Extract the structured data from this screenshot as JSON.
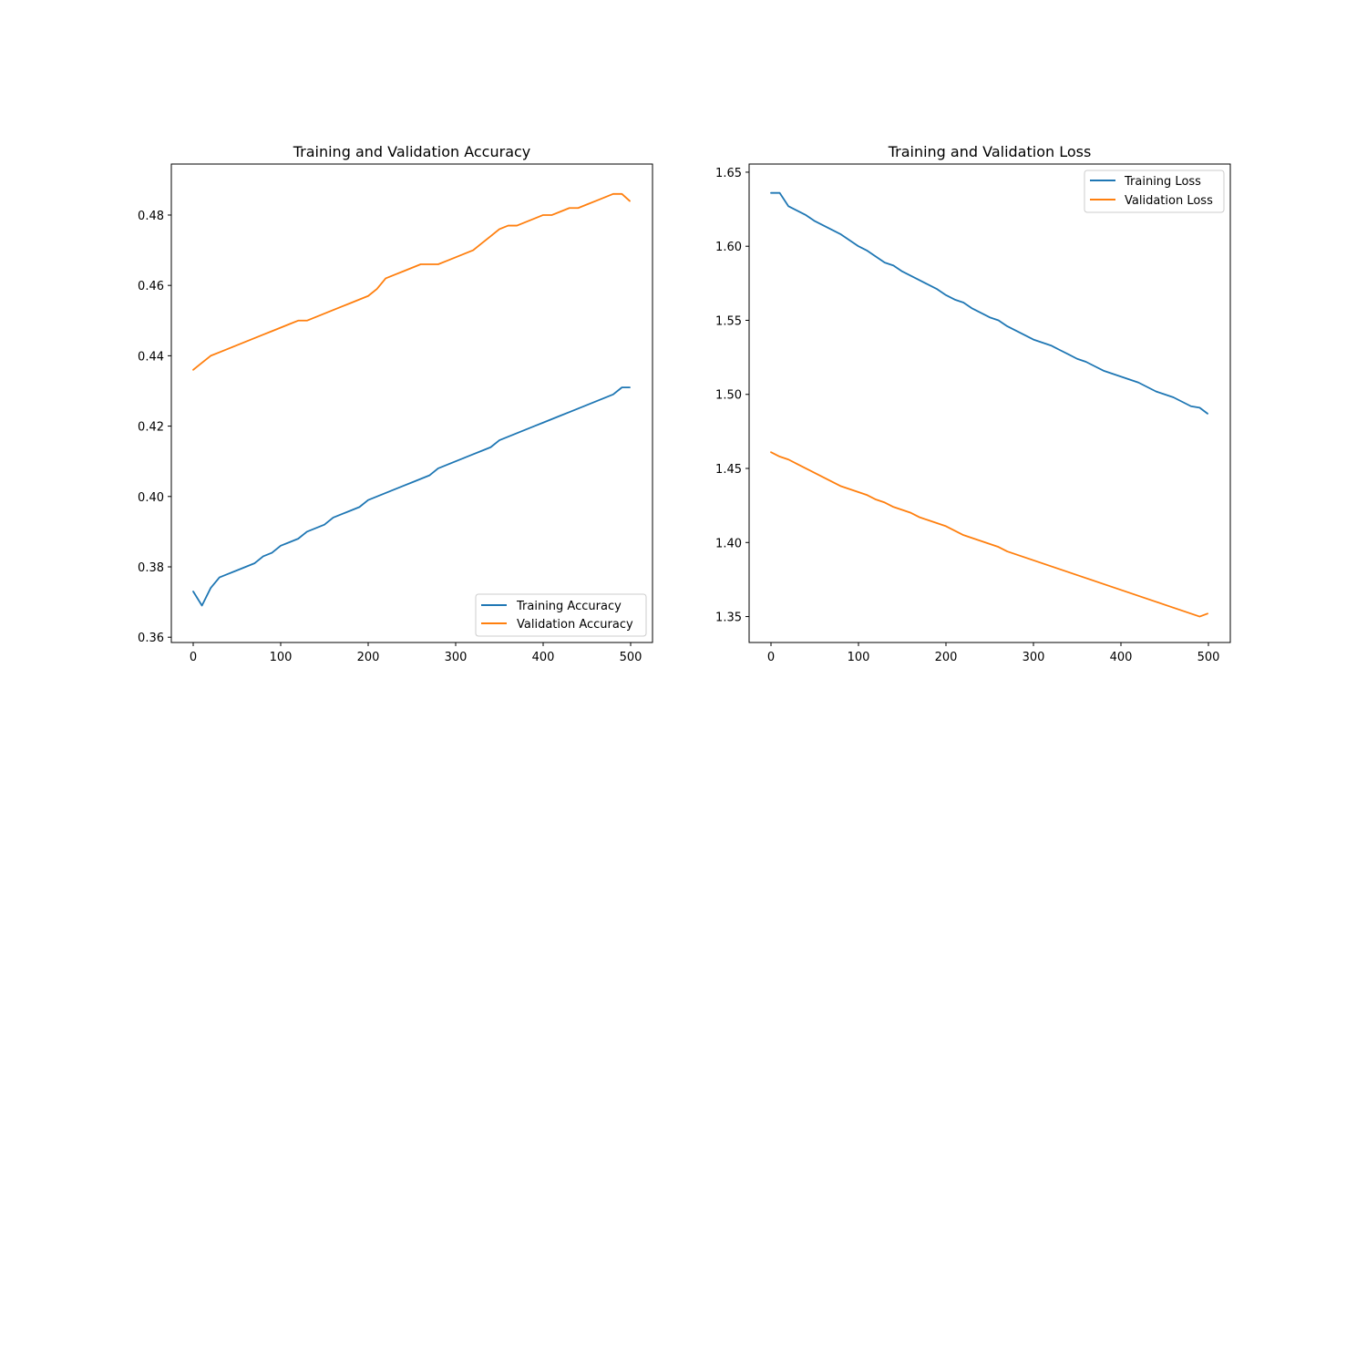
{
  "chart_data": [
    {
      "type": "line",
      "title": "Training and Validation Accuracy",
      "xlabel": "",
      "ylabel": "",
      "xlim": [
        -25,
        525
      ],
      "ylim": [
        0.3585,
        0.4945
      ],
      "xticks": [
        0,
        100,
        200,
        300,
        400,
        500
      ],
      "xtick_labels": [
        "0",
        "100",
        "200",
        "300",
        "400",
        "500"
      ],
      "yticks": [
        0.36,
        0.38,
        0.4,
        0.42,
        0.44,
        0.46,
        0.48
      ],
      "ytick_labels": [
        "0.36",
        "0.38",
        "0.40",
        "0.42",
        "0.44",
        "0.46",
        "0.48"
      ],
      "grid": false,
      "legend_position": "lower-right",
      "series": [
        {
          "name": "Training Accuracy",
          "color": "#1f77b4",
          "x": [
            0,
            10,
            20,
            30,
            40,
            50,
            60,
            70,
            80,
            90,
            100,
            110,
            120,
            130,
            140,
            150,
            160,
            170,
            180,
            190,
            200,
            210,
            220,
            230,
            240,
            250,
            260,
            270,
            280,
            290,
            300,
            310,
            320,
            330,
            340,
            350,
            360,
            370,
            380,
            390,
            400,
            410,
            420,
            430,
            440,
            450,
            460,
            470,
            480,
            490,
            499
          ],
          "y": [
            0.373,
            0.369,
            0.374,
            0.377,
            0.378,
            0.379,
            0.38,
            0.381,
            0.383,
            0.384,
            0.386,
            0.387,
            0.388,
            0.39,
            0.391,
            0.392,
            0.394,
            0.395,
            0.396,
            0.397,
            0.399,
            0.4,
            0.401,
            0.402,
            0.403,
            0.404,
            0.405,
            0.406,
            0.408,
            0.409,
            0.41,
            0.411,
            0.412,
            0.413,
            0.414,
            0.416,
            0.417,
            0.418,
            0.419,
            0.42,
            0.421,
            0.422,
            0.423,
            0.424,
            0.425,
            0.426,
            0.427,
            0.428,
            0.429,
            0.431,
            0.431
          ]
        },
        {
          "name": "Validation Accuracy",
          "color": "#ff7f0e",
          "x": [
            0,
            10,
            20,
            30,
            40,
            50,
            60,
            70,
            80,
            90,
            100,
            110,
            120,
            130,
            140,
            150,
            160,
            170,
            180,
            190,
            200,
            210,
            220,
            230,
            240,
            250,
            260,
            270,
            280,
            290,
            300,
            310,
            320,
            330,
            340,
            350,
            360,
            370,
            380,
            390,
            400,
            410,
            420,
            430,
            440,
            450,
            460,
            470,
            480,
            490,
            499
          ],
          "y": [
            0.436,
            0.438,
            0.44,
            0.441,
            0.442,
            0.443,
            0.444,
            0.445,
            0.446,
            0.447,
            0.448,
            0.449,
            0.45,
            0.45,
            0.451,
            0.452,
            0.453,
            0.454,
            0.455,
            0.456,
            0.457,
            0.459,
            0.462,
            0.463,
            0.464,
            0.465,
            0.466,
            0.466,
            0.466,
            0.467,
            0.468,
            0.469,
            0.47,
            0.472,
            0.474,
            0.476,
            0.477,
            0.477,
            0.478,
            0.479,
            0.48,
            0.48,
            0.481,
            0.482,
            0.482,
            0.483,
            0.484,
            0.485,
            0.486,
            0.486,
            0.484
          ]
        }
      ]
    },
    {
      "type": "line",
      "title": "Training and Validation Loss",
      "xlabel": "",
      "ylabel": "",
      "xlim": [
        -25,
        525
      ],
      "ylim": [
        1.3325,
        1.6555
      ],
      "xticks": [
        0,
        100,
        200,
        300,
        400,
        500
      ],
      "xtick_labels": [
        "0",
        "100",
        "200",
        "300",
        "400",
        "500"
      ],
      "yticks": [
        1.35,
        1.4,
        1.45,
        1.5,
        1.55,
        1.6,
        1.65
      ],
      "ytick_labels": [
        "1.35",
        "1.40",
        "1.45",
        "1.50",
        "1.55",
        "1.60",
        "1.65"
      ],
      "grid": false,
      "legend_position": "upper-right",
      "series": [
        {
          "name": "Training Loss",
          "color": "#1f77b4",
          "x": [
            0,
            10,
            20,
            30,
            40,
            50,
            60,
            70,
            80,
            90,
            100,
            110,
            120,
            130,
            140,
            150,
            160,
            170,
            180,
            190,
            200,
            210,
            220,
            230,
            240,
            250,
            260,
            270,
            280,
            290,
            300,
            310,
            320,
            330,
            340,
            350,
            360,
            370,
            380,
            390,
            400,
            410,
            420,
            430,
            440,
            450,
            460,
            470,
            480,
            490,
            499
          ],
          "y": [
            1.636,
            1.636,
            1.627,
            1.624,
            1.621,
            1.617,
            1.614,
            1.611,
            1.608,
            1.604,
            1.6,
            1.597,
            1.593,
            1.589,
            1.587,
            1.583,
            1.58,
            1.577,
            1.574,
            1.571,
            1.567,
            1.564,
            1.562,
            1.558,
            1.555,
            1.552,
            1.55,
            1.546,
            1.543,
            1.54,
            1.537,
            1.535,
            1.533,
            1.53,
            1.527,
            1.524,
            1.522,
            1.519,
            1.516,
            1.514,
            1.512,
            1.51,
            1.508,
            1.505,
            1.502,
            1.5,
            1.498,
            1.495,
            1.492,
            1.491,
            1.487
          ]
        },
        {
          "name": "Validation Loss",
          "color": "#ff7f0e",
          "x": [
            0,
            10,
            20,
            30,
            40,
            50,
            60,
            70,
            80,
            90,
            100,
            110,
            120,
            130,
            140,
            150,
            160,
            170,
            180,
            190,
            200,
            210,
            220,
            230,
            240,
            250,
            260,
            270,
            280,
            290,
            300,
            310,
            320,
            330,
            340,
            350,
            360,
            370,
            380,
            390,
            400,
            410,
            420,
            430,
            440,
            450,
            460,
            470,
            480,
            490,
            499
          ],
          "y": [
            1.461,
            1.458,
            1.456,
            1.453,
            1.45,
            1.447,
            1.444,
            1.441,
            1.438,
            1.436,
            1.434,
            1.432,
            1.429,
            1.427,
            1.424,
            1.422,
            1.42,
            1.417,
            1.415,
            1.413,
            1.411,
            1.408,
            1.405,
            1.403,
            1.401,
            1.399,
            1.397,
            1.394,
            1.392,
            1.39,
            1.388,
            1.386,
            1.384,
            1.382,
            1.38,
            1.378,
            1.376,
            1.374,
            1.372,
            1.37,
            1.368,
            1.366,
            1.364,
            1.362,
            1.36,
            1.358,
            1.356,
            1.354,
            1.352,
            1.35,
            1.352
          ]
        }
      ]
    }
  ]
}
